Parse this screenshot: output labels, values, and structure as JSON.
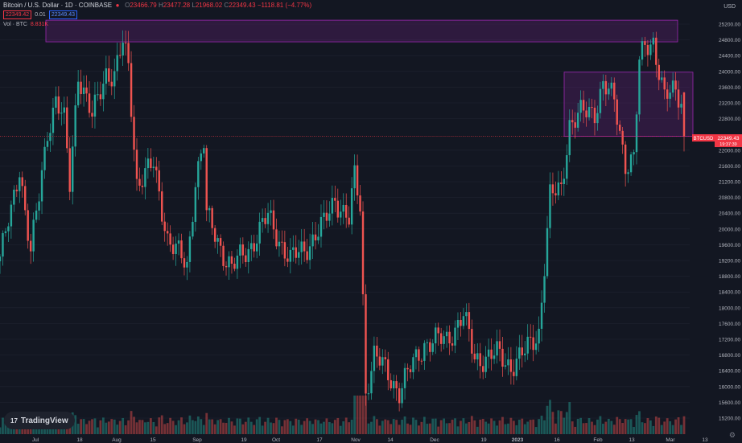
{
  "header": {
    "symbol": "Bitcoin / U.S. Dollar · 1D · COINBASE",
    "o_label": "O",
    "o_value": "23466.79",
    "h_label": "H",
    "h_value": "23477.28",
    "l_label": "L",
    "l_value": "21968.02",
    "c_label": "C",
    "c_value": "22349.43",
    "change": "−1118.81 (−4.77%)",
    "bid": "22349.42",
    "spread": "0.01",
    "ask": "22349.43",
    "vol_label": "Vol · BTC",
    "vol_value": "8.831K",
    "currency": "USD"
  },
  "branding": {
    "logo_text": "TradingView",
    "logo_mark": "17"
  },
  "colors": {
    "background": "#131722",
    "up": "#26a69a",
    "down": "#ef5350",
    "zone": "#9c27b0",
    "grid": "#1f2330",
    "price_line": "#f23645"
  },
  "icons": {
    "menu": "menu-icon",
    "settings": "gear-icon",
    "logo": "tradingview-logo-icon"
  },
  "chart_data": {
    "type": "candlestick",
    "symbol": "BTCUSD",
    "price_axis": {
      "ticks": [
        "25200.00",
        "24800.00",
        "24400.00",
        "24000.00",
        "23600.00",
        "23200.00",
        "22800.00",
        "22000.00",
        "21600.00",
        "21200.00",
        "20800.00",
        "20400.00",
        "20000.00",
        "19600.00",
        "19200.00",
        "18800.00",
        "18400.00",
        "18000.00",
        "17600.00",
        "17200.00",
        "16800.00",
        "16400.00",
        "16000.00",
        "15600.00",
        "15200.00"
      ],
      "range": [
        15050,
        25600
      ]
    },
    "time_axis": {
      "ticks": [
        "Jul",
        "18",
        "Aug",
        "15",
        "Sep",
        "19",
        "Oct",
        "17",
        "Nov",
        "14",
        "Dec",
        "19",
        "2023",
        "16",
        "Feb",
        "13",
        "Mar",
        "13"
      ]
    },
    "last_price": {
      "label": "BTCUSD",
      "value": "22349.43",
      "countdown": "19:37:39"
    },
    "zones": [
      {
        "from": "Jul 8",
        "to": "Mar 4",
        "low": 24750,
        "high": 25300
      },
      {
        "from": "Jan 17",
        "to": "Mar 1",
        "low": 22350,
        "high": 23980
      }
    ],
    "series": [
      {
        "name": "Price",
        "keyframes": [
          [
            "2022-07-01",
            19300
          ],
          [
            "2022-07-05",
            20400
          ],
          [
            "2022-07-08",
            21600
          ],
          [
            "2022-07-12",
            19400
          ],
          [
            "2022-07-15",
            20800
          ],
          [
            "2022-07-18",
            22500
          ],
          [
            "2022-07-21",
            23300
          ],
          [
            "2022-07-24",
            22700
          ],
          [
            "2022-07-26",
            21100
          ],
          [
            "2022-07-29",
            24000
          ],
          [
            "2022-08-03",
            22800
          ],
          [
            "2022-08-08",
            24000
          ],
          [
            "2022-08-11",
            23900
          ],
          [
            "2022-08-14",
            24700
          ],
          [
            "2022-08-16",
            24100
          ],
          [
            "2022-08-19",
            21200
          ],
          [
            "2022-08-25",
            21600
          ],
          [
            "2022-08-30",
            19800
          ],
          [
            "2022-09-06",
            19000
          ],
          [
            "2022-09-09",
            21300
          ],
          [
            "2022-09-12",
            22200
          ],
          [
            "2022-09-13",
            20300
          ],
          [
            "2022-09-19",
            19400
          ],
          [
            "2022-09-22",
            19000
          ],
          [
            "2022-09-28",
            19500
          ],
          [
            "2022-10-05",
            20300
          ],
          [
            "2022-10-13",
            19200
          ],
          [
            "2022-10-18",
            19500
          ],
          [
            "2022-10-25",
            20100
          ],
          [
            "2022-10-29",
            20800
          ],
          [
            "2022-11-03",
            20200
          ],
          [
            "2022-11-05",
            21300
          ],
          [
            "2022-11-07",
            20600
          ],
          [
            "2022-11-09",
            15900
          ],
          [
            "2022-11-12",
            16800
          ],
          [
            "2022-11-21",
            15900
          ],
          [
            "2022-11-30",
            17100
          ],
          [
            "2022-12-08",
            17200
          ],
          [
            "2022-12-14",
            17800
          ],
          [
            "2022-12-18",
            16700
          ],
          [
            "2022-12-26",
            16800
          ],
          [
            "2022-12-31",
            16550
          ],
          [
            "2023-01-05",
            16850
          ],
          [
            "2023-01-10",
            17400
          ],
          [
            "2023-01-14",
            20800
          ],
          [
            "2023-01-18",
            21000
          ],
          [
            "2023-01-21",
            22700
          ],
          [
            "2023-01-25",
            22900
          ],
          [
            "2023-01-30",
            23000
          ],
          [
            "2023-02-02",
            23700
          ],
          [
            "2023-02-06",
            23200
          ],
          [
            "2023-02-10",
            21700
          ],
          [
            "2023-02-13",
            21800
          ],
          [
            "2023-02-15",
            24200
          ],
          [
            "2023-02-17",
            24600
          ],
          [
            "2023-02-20",
            24800
          ],
          [
            "2023-02-24",
            23300
          ],
          [
            "2023-02-28",
            23500
          ],
          [
            "2023-03-02",
            23300
          ],
          [
            "2023-03-03",
            22349
          ]
        ]
      },
      {
        "name": "Volume",
        "note": "relative daily volume"
      }
    ]
  }
}
